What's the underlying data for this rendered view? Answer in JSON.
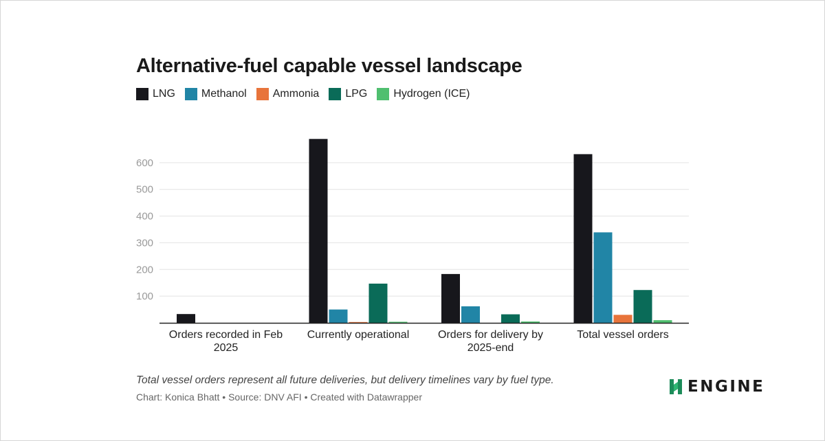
{
  "chart_data": {
    "type": "bar",
    "title": "Alternative-fuel capable vessel landscape",
    "categories": [
      [
        "Orders recorded in Feb",
        "2025"
      ],
      [
        "Currently operational"
      ],
      [
        "Orders for delivery by",
        "2025-end"
      ],
      [
        "Total vessel orders"
      ]
    ],
    "series": [
      {
        "name": "LNG",
        "color": "#17171c",
        "values": [
          33,
          689,
          183,
          632
        ]
      },
      {
        "name": "Methanol",
        "color": "#2185a6",
        "values": [
          0,
          50,
          62,
          339
        ]
      },
      {
        "name": "Ammonia",
        "color": "#e8743b",
        "values": [
          0,
          2,
          0,
          30
        ]
      },
      {
        "name": "LPG",
        "color": "#0a6b58",
        "values": [
          0,
          147,
          32,
          123
        ]
      },
      {
        "name": "Hydrogen (ICE)",
        "color": "#4fbf6f",
        "values": [
          0,
          4,
          5,
          10
        ]
      }
    ],
    "yticks": [
      100,
      200,
      300,
      400,
      500,
      600
    ],
    "ylim": [
      0,
      700
    ],
    "grid": true,
    "legend": "top-left",
    "xlabel": "",
    "ylabel": ""
  },
  "note": "Total vessel orders represent all future deliveries, but delivery timelines vary by fuel type.",
  "credit": "Chart: Konica Bhatt • Source: DNV AFI • Created with Datawrapper",
  "logo": {
    "text": "ENGINE",
    "icon": "engine-logo-icon",
    "color": "#1d8c5a"
  }
}
